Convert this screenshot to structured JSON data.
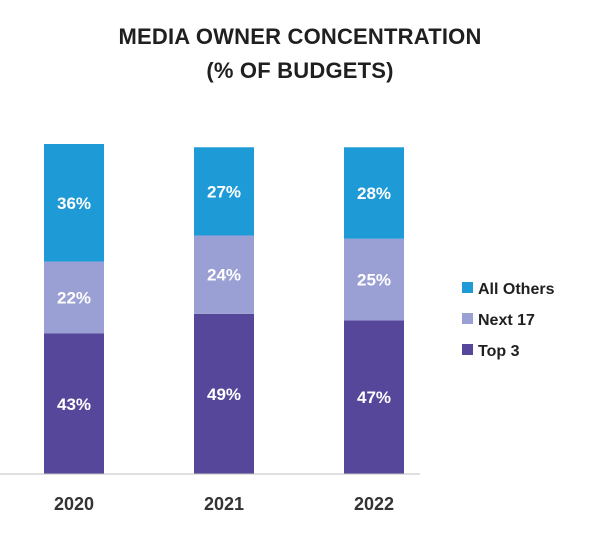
{
  "chart_data": {
    "type": "bar",
    "stacked": true,
    "title": "MEDIA OWNER CONCENTRATION",
    "subtitle": "(% OF BUDGETS)",
    "categories": [
      "2020",
      "2021",
      "2022"
    ],
    "series": [
      {
        "name": "Top 3",
        "values": [
          43,
          49,
          47
        ],
        "labels": [
          "43%",
          "49%",
          "47%"
        ],
        "color": "#56479a"
      },
      {
        "name": "Next 17",
        "values": [
          22,
          24,
          25
        ],
        "labels": [
          "22%",
          "24%",
          "25%"
        ],
        "color": "#9a9fd4"
      },
      {
        "name": "All Others",
        "values": [
          36,
          27,
          28
        ],
        "labels": [
          "36%",
          "27%",
          "28%"
        ],
        "color": "#1e9ad6"
      }
    ],
    "legend_order": [
      "All Others",
      "Next 17",
      "Top 3"
    ],
    "legend_position": "right",
    "grid": false
  }
}
